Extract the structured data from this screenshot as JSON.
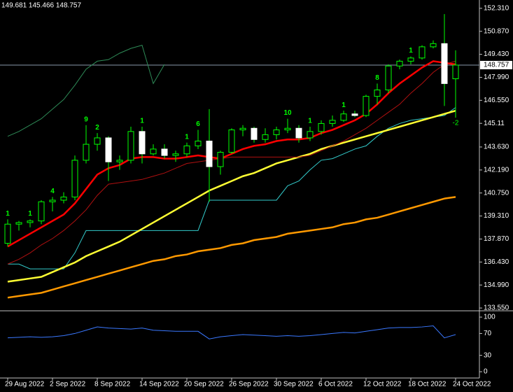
{
  "chart_data": [
    {
      "type": "candlestick",
      "header": "149.681 145.466 148.757",
      "categories": [
        "29 Aug 2022",
        null,
        null,
        null,
        "2 Sep 2022",
        null,
        null,
        null,
        "8 Sep 2022",
        null,
        null,
        null,
        "14 Sep 2022",
        null,
        null,
        null,
        "20 Sep 2022",
        null,
        null,
        null,
        "26 Sep 2022",
        null,
        null,
        null,
        "30 Sep 2022",
        null,
        null,
        null,
        "6 Oct 2022",
        null,
        null,
        null,
        "12 Oct 2022",
        null,
        null,
        null,
        "18 Oct 2022",
        null,
        null,
        null,
        "24 Oct 2022"
      ],
      "open": [
        137.6,
        138.8,
        138.9,
        139.0,
        140.2,
        140.3,
        140.5,
        142.8,
        143.8,
        144.2,
        142.7,
        142.8,
        144.6,
        143.2,
        143.5,
        143.1,
        143.2,
        143.7,
        144.0,
        142.4,
        143.3,
        144.7,
        144.8,
        144.1,
        144.4,
        144.7,
        144.8,
        144.2,
        144.6,
        145.1,
        145.3,
        145.7,
        145.6,
        146.8,
        147.2,
        148.7,
        149.0,
        149.2,
        149.9,
        150.1,
        147.9
      ],
      "high": [
        139.1,
        139.0,
        139.1,
        140.3,
        140.5,
        140.8,
        143.1,
        145.0,
        144.5,
        144.3,
        143.1,
        144.9,
        144.9,
        143.8,
        143.8,
        143.4,
        143.9,
        144.7,
        146.0,
        143.4,
        144.8,
        145.0,
        144.9,
        144.8,
        144.9,
        145.4,
        145.0,
        144.9,
        145.3,
        145.6,
        145.9,
        145.9,
        146.9,
        147.6,
        148.8,
        149.1,
        149.3,
        150.0,
        150.3,
        151.95,
        149.681
      ],
      "low": [
        137.4,
        138.4,
        138.6,
        138.8,
        139.6,
        140.1,
        140.3,
        142.6,
        143.4,
        141.5,
        142.2,
        142.6,
        142.6,
        143.1,
        142.9,
        142.7,
        143.0,
        143.5,
        140.2,
        141.9,
        143.2,
        144.3,
        143.9,
        143.9,
        144.1,
        144.5,
        143.9,
        144.0,
        144.4,
        144.9,
        145.2,
        145.5,
        145.5,
        146.3,
        147.0,
        148.5,
        148.8,
        149.1,
        149.8,
        146.2,
        145.466
      ],
      "close": [
        138.8,
        138.9,
        139.0,
        140.2,
        140.3,
        140.5,
        142.8,
        143.8,
        144.2,
        142.7,
        142.8,
        144.6,
        143.2,
        143.5,
        143.1,
        143.2,
        143.7,
        144.0,
        142.4,
        143.3,
        144.7,
        144.8,
        144.1,
        144.4,
        144.7,
        144.8,
        144.2,
        144.6,
        145.1,
        145.3,
        145.7,
        145.6,
        146.8,
        147.2,
        148.7,
        149.0,
        149.2,
        149.9,
        150.1,
        147.6,
        148.757
      ],
      "bull_color": "#00ff00",
      "bear_color": "#ffffff",
      "wick_color": "#00ff00",
      "series": [
        {
          "color": "#2e8b57",
          "width": 1,
          "values": [
            144.3,
            144.6,
            145.0,
            145.4,
            146.0,
            146.6,
            147.5,
            148.5,
            149.0,
            149.1,
            149.5,
            149.8,
            150.0,
            147.6,
            148.8,
            null,
            null,
            null,
            null,
            null,
            null,
            null,
            null,
            null,
            null,
            null,
            null,
            null,
            null,
            null,
            null,
            null,
            null,
            null,
            null,
            null,
            null,
            null,
            null,
            null,
            null
          ]
        },
        {
          "color": "#33cccc",
          "width": 1,
          "values": [
            136.3,
            136.3,
            136.0,
            136.0,
            136.0,
            136.0,
            137.0,
            138.4,
            138.4,
            138.4,
            138.4,
            138.4,
            138.4,
            138.4,
            138.4,
            138.4,
            138.4,
            138.4,
            140.3,
            140.3,
            140.3,
            140.3,
            140.3,
            140.3,
            140.3,
            141.2,
            141.5,
            142.2,
            142.8,
            142.9,
            143.2,
            143.5,
            143.7,
            144.3,
            144.8,
            145.1,
            145.3,
            145.4,
            145.5,
            145.6,
            146.1
          ]
        },
        {
          "color": "#ff9900",
          "width": 2.5,
          "values": [
            134.2,
            134.3,
            134.4,
            134.5,
            134.7,
            134.9,
            135.1,
            135.3,
            135.5,
            135.7,
            135.9,
            136.1,
            136.3,
            136.5,
            136.6,
            136.8,
            136.9,
            137.1,
            137.2,
            137.3,
            137.5,
            137.6,
            137.8,
            137.9,
            138.0,
            138.2,
            138.3,
            138.4,
            138.5,
            138.6,
            138.8,
            138.9,
            139.1,
            139.2,
            139.4,
            139.6,
            139.8,
            140.0,
            140.2,
            140.4,
            140.5
          ]
        },
        {
          "color": "#ffff33",
          "width": 2.5,
          "values": [
            135.2,
            135.3,
            135.4,
            135.5,
            135.8,
            136.1,
            136.4,
            136.8,
            137.1,
            137.4,
            137.7,
            138.1,
            138.5,
            138.9,
            139.3,
            139.7,
            140.1,
            140.5,
            140.9,
            141.2,
            141.5,
            141.8,
            142.0,
            142.3,
            142.6,
            142.8,
            143.0,
            143.2,
            143.5,
            143.7,
            143.9,
            144.1,
            144.3,
            144.5,
            144.7,
            144.9,
            145.1,
            145.3,
            145.5,
            145.7,
            145.9
          ]
        },
        {
          "color": "#b01010",
          "width": 1,
          "values": [
            136.3,
            136.6,
            137.0,
            137.5,
            137.9,
            138.4,
            139.0,
            139.7,
            140.6,
            141.3,
            141.4,
            141.5,
            141.6,
            141.8,
            142.0,
            142.3,
            142.6,
            142.7,
            142.8,
            142.9,
            143.0,
            143.0,
            143.0,
            143.0,
            143.0,
            143.0,
            143.0,
            143.1,
            143.4,
            143.7,
            144.0,
            144.4,
            144.8,
            145.3,
            145.8,
            146.3,
            147.0,
            147.6,
            148.3,
            148.8,
            149.0
          ]
        },
        {
          "color": "#ff0000",
          "width": 2.5,
          "values": [
            137.4,
            137.8,
            138.2,
            138.6,
            139.0,
            139.4,
            140.1,
            141.0,
            141.9,
            142.3,
            142.5,
            142.9,
            143.0,
            143.0,
            142.9,
            142.9,
            143.0,
            143.1,
            143.0,
            142.9,
            143.2,
            143.5,
            143.7,
            143.8,
            144.0,
            144.1,
            144.1,
            144.2,
            144.5,
            144.7,
            145.0,
            145.3,
            145.7,
            146.3,
            147.0,
            147.6,
            148.1,
            148.6,
            149.0,
            148.9,
            148.8
          ]
        }
      ],
      "labels_above": [
        "1",
        null,
        "1",
        null,
        "4",
        null,
        null,
        "9",
        "2",
        null,
        null,
        null,
        "1",
        null,
        null,
        null,
        "1",
        "6",
        null,
        null,
        null,
        null,
        null,
        null,
        null,
        "10",
        null,
        "1",
        null,
        null,
        "1",
        null,
        null,
        "8",
        null,
        null,
        "1",
        null,
        null,
        null,
        null
      ],
      "labels_below": [
        null,
        null,
        null,
        null,
        null,
        null,
        null,
        null,
        null,
        null,
        null,
        null,
        null,
        null,
        null,
        null,
        null,
        null,
        null,
        null,
        null,
        null,
        null,
        null,
        null,
        null,
        null,
        null,
        null,
        null,
        null,
        null,
        null,
        null,
        null,
        null,
        null,
        null,
        null,
        null,
        "-2"
      ],
      "current_price": 148.757,
      "ylim": [
        133.42,
        152.83
      ],
      "yticks": [
        {
          "value": 152.31,
          "label": "152.310"
        },
        {
          "value": 150.87,
          "label": "150.870"
        },
        {
          "value": 149.43,
          "label": "149.430"
        },
        {
          "value": 147.99,
          "label": "147.990"
        },
        {
          "value": 146.55,
          "label": "146.550"
        },
        145.11,
        {
          "value": 143.63,
          "label": "143.630"
        },
        {
          "value": 142.19,
          "label": "142.190"
        },
        {
          "value": 140.75,
          "label": "140.750"
        },
        {
          "value": 139.31,
          "label": "139.310"
        },
        {
          "value": 137.87,
          "label": "137.870"
        },
        {
          "value": 136.43,
          "label": "136.430"
        },
        {
          "value": 134.99,
          "label": "134.990"
        },
        {
          "value": 133.55,
          "label": "133.550"
        }
      ]
    },
    {
      "type": "line",
      "series": [
        {
          "color": "#3a78ff",
          "values": [
            62,
            63,
            64,
            63,
            64,
            66,
            70,
            76,
            82,
            80,
            79,
            78,
            80,
            76,
            75,
            74,
            74,
            74,
            60,
            64,
            66,
            68,
            67,
            66,
            65,
            66,
            65,
            66,
            68,
            70,
            72,
            71,
            74,
            77,
            80,
            81,
            81,
            82,
            84,
            62,
            68
          ]
        }
      ],
      "ylim": [
        -11.5,
        109
      ],
      "yticks": [
        100,
        70,
        30,
        0
      ]
    }
  ]
}
